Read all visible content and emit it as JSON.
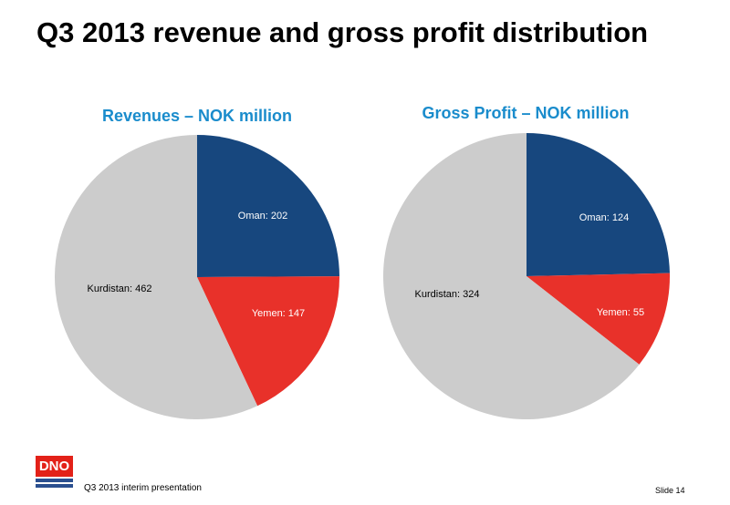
{
  "slide": {
    "title": "Q3 2013 revenue and gross profit distribution",
    "footer_text": "Q3 2013 interim presentation",
    "slide_number": "Slide 14",
    "logo_text": "DNO"
  },
  "colors": {
    "title_blue": "#1a8ccc",
    "oman": "#17477e",
    "yemen": "#e8312a",
    "kurdistan": "#cccccc",
    "logo_red": "#e32118",
    "logo_blue": "#2a4f8f"
  },
  "chart_data": [
    {
      "type": "pie",
      "title": "Revenues – NOK million",
      "slices": [
        {
          "label": "Oman: 202",
          "name": "Oman",
          "value": 202,
          "color": "#17477e",
          "label_color": "#ffffff"
        },
        {
          "label": "Yemen: 147",
          "name": "Yemen",
          "value": 147,
          "color": "#e8312a",
          "label_color": "#ffffff"
        },
        {
          "label": "Kurdistan: 462",
          "name": "Kurdistan",
          "value": 462,
          "color": "#cccccc",
          "label_color": "#000000"
        }
      ]
    },
    {
      "type": "pie",
      "title": "Gross Profit – NOK million",
      "slices": [
        {
          "label": "Oman: 124",
          "name": "Oman",
          "value": 124,
          "color": "#17477e",
          "label_color": "#ffffff"
        },
        {
          "label": "Yemen: 55",
          "name": "Yemen",
          "value": 55,
          "color": "#e8312a",
          "label_color": "#ffffff"
        },
        {
          "label": "Kurdistan: 324",
          "name": "Kurdistan",
          "value": 324,
          "color": "#cccccc",
          "label_color": "#000000"
        }
      ]
    }
  ]
}
